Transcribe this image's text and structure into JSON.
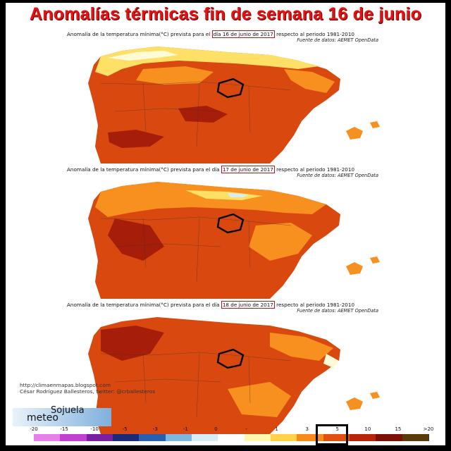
{
  "title": "Anomalías térmicas fin de semana 16 de junio",
  "panels": [
    {
      "caption_before": "Anomalía de la temperatura mínima(°C) prevista para el ",
      "date_text": "día 16 de junio de 2017",
      "caption_after": " respecto al periodo 1981-2010",
      "source": "Fuente de datos: AEMET OpenData"
    },
    {
      "caption_before": "Anomalía de la temperatura mínima(°C) prevista para el día ",
      "date_text": "17 de junio de 2017",
      "caption_after": " respecto al periodo 1981-2010",
      "source": "Fuente de datos: AEMET OpenData"
    },
    {
      "caption_before": "Anomalía de la temperatura mínima(°C) prevista para el día ",
      "date_text": "18 de junio de 2017",
      "caption_after": " respecto al periodo 1981-2010",
      "source": "Fuente de datos: AEMET OpenData"
    }
  ],
  "credit": {
    "url": "http://climaenmapas.blogspot.com",
    "author": "César Rodríguez Ballesteros, twitter: @crballesteros"
  },
  "logo": {
    "meteo": "meteo",
    "sojuela": "Sojuela"
  },
  "legend": {
    "labels": [
      "-20",
      "-15",
      "-10",
      "-5",
      "-3",
      "-1",
      "0",
      "-",
      "1",
      "3",
      "5",
      "10",
      "15",
      ">20"
    ],
    "colors": [
      "#e67fe6",
      "#c040d0",
      "#7a1fa0",
      "#1a2a78",
      "#2a5fb0",
      "#7fb6e0",
      "#d6ecf6",
      "#ffffff",
      "#fff6b0",
      "#ffd24a",
      "#f78a1a",
      "#e2500e",
      "#b8240a",
      "#7a1006",
      "#5a3a0a"
    ],
    "highlighted_label": "5"
  },
  "colors": {
    "title": "#e81010",
    "sea": "#ffffff",
    "anomaly_high": "#d9480f",
    "anomaly_very_high": "#a61e0a",
    "anomaly_moderate": "#f7901f",
    "anomaly_low": "#ffe066",
    "anomaly_near_zero": "#fffbd6",
    "highlighted_region_border": "#000000"
  }
}
